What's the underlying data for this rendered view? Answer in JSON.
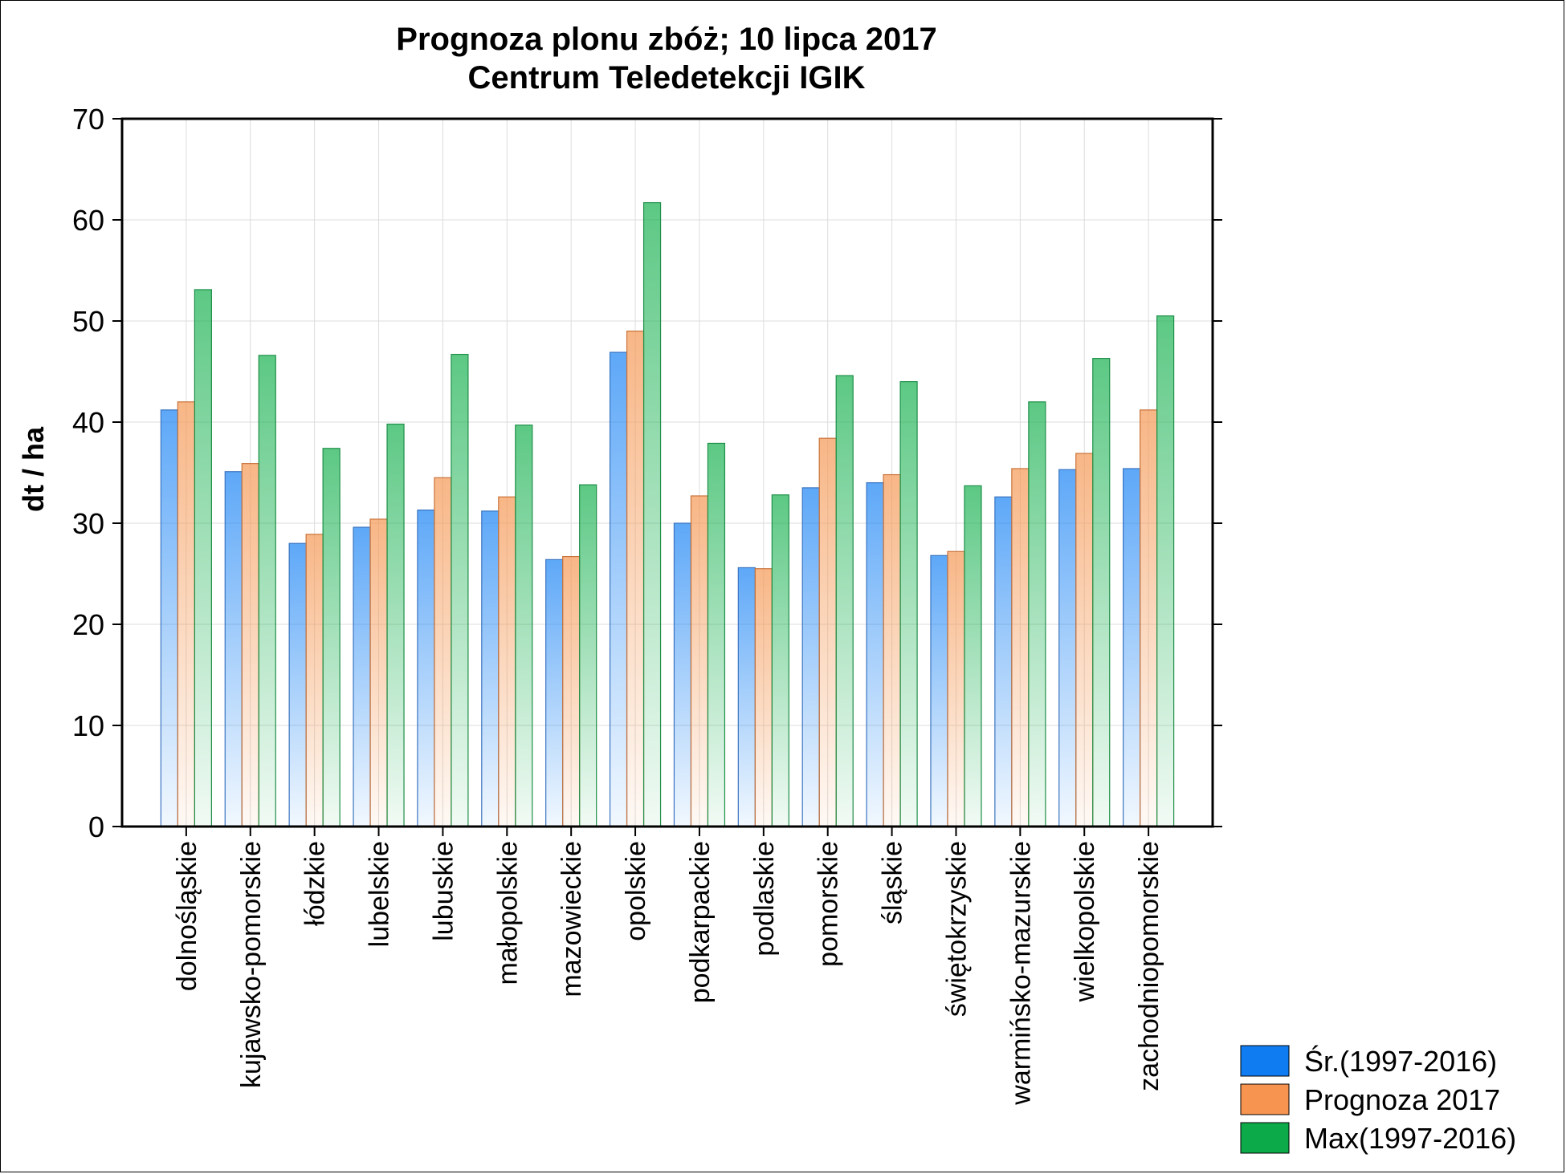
{
  "chart_data": {
    "type": "bar",
    "title": [
      "Prognoza plonu zbóż; 10 lipca 2017",
      "Centrum Teledetekcji IGIK"
    ],
    "ylabel": "dt / ha",
    "xlabel": "",
    "ylim": [
      0,
      70
    ],
    "yticks": [
      0,
      10,
      20,
      30,
      40,
      50,
      60,
      70
    ],
    "grid": true,
    "legend_position": "bottom-right",
    "categories": [
      "dolnośląskie",
      "kujawsko-pomorskie",
      "łódzkie",
      "lubelskie",
      "lubuskie",
      "małopolskie",
      "mazowieckie",
      "opolskie",
      "podkarpackie",
      "podlaskie",
      "pomorskie",
      "śląskie",
      "świętokrzyskie",
      "warmińsko-mazurskie",
      "wielkopolskie",
      "zachodniopomorskie"
    ],
    "series": [
      {
        "name": "Śr.(1997-2016)",
        "color": "#1f86f5",
        "values": [
          41.2,
          35.1,
          28.0,
          29.6,
          31.3,
          31.2,
          26.4,
          46.9,
          30.0,
          25.6,
          33.5,
          34.0,
          26.8,
          32.6,
          35.3,
          35.4
        ]
      },
      {
        "name": "Prognoza 2017",
        "color": "#f59a57",
        "values": [
          42.0,
          35.9,
          28.9,
          30.4,
          34.5,
          32.6,
          26.7,
          49.0,
          32.7,
          25.5,
          38.4,
          34.8,
          27.2,
          35.4,
          36.9,
          41.2
        ]
      },
      {
        "name": "Max(1997-2016)",
        "color": "#1db354",
        "values": [
          53.1,
          46.6,
          37.4,
          39.8,
          46.7,
          39.7,
          33.8,
          61.7,
          37.9,
          32.8,
          44.6,
          44.0,
          33.7,
          42.0,
          46.3,
          50.5
        ]
      }
    ]
  }
}
